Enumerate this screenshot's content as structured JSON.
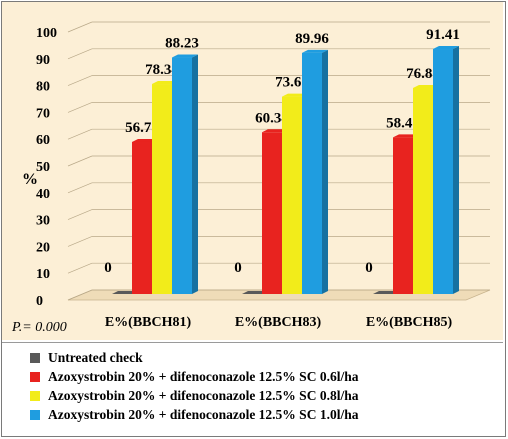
{
  "chart_data": {
    "type": "bar",
    "ylabel": "%",
    "ylim": [
      0,
      100
    ],
    "yticks": [
      "0",
      "10",
      "20",
      "30",
      "40",
      "50",
      "60",
      "70",
      "80",
      "90",
      "100"
    ],
    "categories": [
      "E%(BBCH81)",
      "E%(BBCH83)",
      "E%(BBCH85)"
    ],
    "series": [
      {
        "name": "Untreated check",
        "color": "#595959",
        "values": [
          0,
          0,
          0
        ],
        "labels": [
          "0",
          "0",
          "0"
        ]
      },
      {
        "name": "Azoxystrobin 20% + difenoconazole 12.5% SC 0.6l/ha",
        "color": "#e8231f",
        "values": [
          56.73,
          60.34,
          58.42
        ],
        "labels": [
          "56.73",
          "60.34",
          "58.42"
        ]
      },
      {
        "name": "Azoxystrobin 20% + difenoconazole 12.5% SC 0.8l/ha",
        "color": "#f2ec1a",
        "values": [
          78.34,
          73.65,
          76.88
        ],
        "labels": [
          "78.34",
          "73.65",
          "76.88"
        ]
      },
      {
        "name": "Azoxystrobin 20% + difenoconazole 12.5% SC 1.0l/ha",
        "color": "#1f9de0",
        "values": [
          88.23,
          89.96,
          91.41
        ],
        "labels": [
          "88.23",
          "89.96",
          "91.41"
        ]
      }
    ],
    "grid": true,
    "legend_position": "bottom",
    "annotation": "P.= 0.000"
  }
}
